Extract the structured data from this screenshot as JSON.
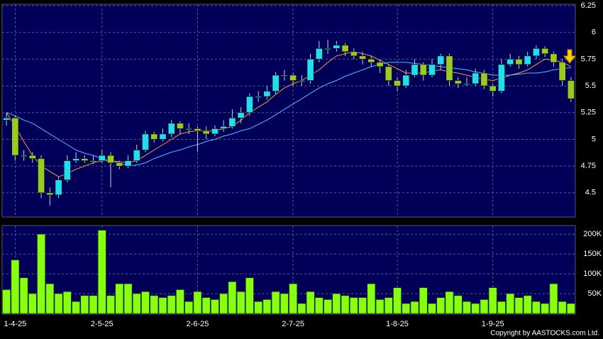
{
  "chart_data": {
    "type": "candlestick",
    "categories": [
      null,
      "1-4-25",
      null,
      null,
      null,
      null,
      null,
      null,
      null,
      null,
      null,
      "2-5-25",
      null,
      null,
      null,
      null,
      null,
      null,
      null,
      null,
      null,
      null,
      "2-6-25",
      null,
      null,
      null,
      null,
      null,
      null,
      null,
      null,
      null,
      null,
      "2-7-25",
      null,
      null,
      null,
      null,
      null,
      null,
      null,
      null,
      null,
      null,
      null,
      "1-8-25",
      null,
      null,
      null,
      null,
      null,
      null,
      null,
      null,
      null,
      null,
      "1-9-25",
      null,
      null,
      null,
      null,
      null,
      null,
      null,
      null,
      null
    ],
    "open": [
      5.18,
      5.2,
      4.85,
      4.85,
      4.82,
      4.5,
      4.48,
      4.62,
      4.8,
      4.82,
      4.8,
      4.8,
      4.85,
      4.78,
      4.75,
      4.8,
      4.9,
      5.05,
      5.0,
      5.05,
      5.15,
      5.1,
      5.1,
      5.08,
      5.05,
      5.1,
      5.12,
      5.2,
      5.25,
      5.4,
      5.4,
      5.45,
      5.6,
      5.6,
      5.55,
      5.55,
      5.75,
      5.85,
      5.85,
      5.88,
      5.82,
      5.78,
      5.75,
      5.72,
      5.68,
      5.55,
      5.5,
      5.6,
      5.7,
      5.6,
      5.7,
      5.78,
      5.55,
      5.52,
      5.52,
      5.62,
      5.5,
      5.45,
      5.7,
      5.75,
      5.7,
      5.78,
      5.85,
      5.8,
      5.72,
      5.55
    ],
    "high": [
      5.25,
      5.22,
      4.9,
      4.88,
      4.85,
      4.55,
      4.65,
      4.85,
      4.88,
      4.85,
      4.85,
      4.9,
      4.88,
      4.8,
      4.85,
      4.95,
      5.08,
      5.07,
      5.1,
      5.18,
      5.17,
      5.15,
      5.12,
      5.12,
      5.13,
      5.18,
      5.28,
      5.3,
      5.43,
      5.45,
      5.5,
      5.63,
      5.65,
      5.62,
      5.6,
      5.8,
      5.92,
      5.93,
      5.92,
      5.9,
      5.85,
      5.82,
      5.78,
      5.75,
      5.7,
      5.58,
      5.65,
      5.75,
      5.72,
      5.75,
      5.8,
      5.8,
      5.58,
      5.58,
      5.66,
      5.65,
      5.52,
      5.75,
      5.8,
      5.78,
      5.82,
      5.88,
      5.87,
      5.82,
      5.75,
      5.58
    ],
    "low": [
      5.13,
      4.8,
      4.8,
      4.78,
      4.45,
      4.38,
      4.45,
      4.6,
      4.78,
      4.78,
      4.77,
      4.78,
      4.55,
      4.72,
      4.73,
      4.78,
      4.88,
      4.97,
      4.98,
      5.02,
      5.05,
      5.05,
      4.88,
      5.0,
      5.03,
      5.07,
      5.1,
      5.15,
      5.22,
      5.35,
      5.37,
      5.42,
      5.55,
      5.5,
      5.5,
      5.52,
      5.72,
      5.8,
      5.82,
      5.78,
      5.75,
      5.7,
      5.68,
      5.62,
      5.5,
      5.45,
      5.48,
      5.58,
      5.55,
      5.58,
      5.65,
      5.5,
      5.48,
      5.5,
      5.5,
      5.47,
      5.4,
      5.43,
      5.68,
      5.66,
      5.68,
      5.75,
      5.77,
      5.68,
      5.5,
      5.35
    ],
    "close": [
      5.2,
      4.85,
      4.85,
      4.82,
      4.5,
      4.48,
      4.62,
      4.8,
      4.82,
      4.8,
      4.8,
      4.85,
      4.78,
      4.75,
      4.8,
      4.9,
      5.05,
      5.0,
      5.05,
      5.15,
      5.1,
      5.1,
      5.08,
      5.05,
      5.1,
      5.12,
      5.2,
      5.25,
      5.4,
      5.4,
      5.45,
      5.6,
      5.6,
      5.55,
      5.55,
      5.75,
      5.85,
      5.85,
      5.88,
      5.82,
      5.78,
      5.75,
      5.72,
      5.68,
      5.55,
      5.5,
      5.6,
      5.7,
      5.6,
      5.7,
      5.78,
      5.55,
      5.52,
      5.52,
      5.62,
      5.5,
      5.45,
      5.7,
      5.75,
      5.7,
      5.78,
      5.85,
      5.8,
      5.72,
      5.55,
      5.38
    ],
    "up_color": "#22ddee",
    "down_color": "#99cc22",
    "series": [
      {
        "color": "#ff9933",
        "values": [
          5.25,
          5.12,
          4.98,
          4.85,
          4.75,
          4.7,
          4.65,
          4.68,
          4.72,
          4.75,
          4.78,
          4.8,
          4.8,
          4.79,
          4.78,
          4.8,
          4.85,
          4.9,
          4.95,
          5.0,
          5.05,
          5.07,
          5.08,
          5.08,
          5.08,
          5.1,
          5.12,
          5.18,
          5.25,
          5.3,
          5.35,
          5.42,
          5.48,
          5.52,
          5.55,
          5.6,
          5.65,
          5.72,
          5.78,
          5.8,
          5.82,
          5.8,
          5.78,
          5.74,
          5.7,
          5.66,
          5.62,
          5.62,
          5.62,
          5.64,
          5.65,
          5.63,
          5.62,
          5.6,
          5.58,
          5.56,
          5.55,
          5.57,
          5.6,
          5.62,
          5.65,
          5.7,
          5.75,
          5.74,
          5.72,
          5.68
        ]
      },
      {
        "color": "#55bbff",
        "values": [
          5.25,
          5.22,
          5.18,
          5.15,
          5.1,
          5.05,
          5.0,
          4.95,
          4.9,
          4.87,
          4.85,
          4.82,
          4.8,
          4.78,
          4.75,
          4.76,
          4.78,
          4.82,
          4.85,
          4.88,
          4.9,
          4.93,
          4.95,
          4.98,
          5.0,
          5.03,
          5.05,
          5.08,
          5.1,
          5.14,
          5.18,
          5.23,
          5.28,
          5.33,
          5.38,
          5.43,
          5.48,
          5.52,
          5.55,
          5.59,
          5.62,
          5.65,
          5.68,
          5.7,
          5.72,
          5.72,
          5.72,
          5.71,
          5.7,
          5.69,
          5.68,
          5.67,
          5.66,
          5.65,
          5.63,
          5.62,
          5.6,
          5.6,
          5.6,
          5.61,
          5.62,
          5.62,
          5.63,
          5.65,
          5.66,
          5.67
        ]
      }
    ],
    "ylim": [
      4.28,
      6.25
    ],
    "yticks": [
      4.5,
      4.75,
      5,
      5.25,
      5.5,
      5.75,
      6,
      6.25
    ],
    "grid": true,
    "volume": {
      "color": "#88ff11",
      "values": [
        60000,
        135000,
        90000,
        50000,
        200000,
        75000,
        50000,
        55000,
        30000,
        45000,
        45000,
        210000,
        45000,
        75000,
        75000,
        50000,
        55000,
        45000,
        40000,
        45000,
        60000,
        30000,
        55000,
        40000,
        35000,
        50000,
        80000,
        55000,
        90000,
        30000,
        35000,
        55000,
        50000,
        75000,
        25000,
        55000,
        40000,
        35000,
        50000,
        45000,
        40000,
        40000,
        75000,
        35000,
        40000,
        65000,
        25000,
        30000,
        65000,
        25000,
        40000,
        55000,
        45000,
        30000,
        25000,
        35000,
        65000,
        30000,
        50000,
        40000,
        45000,
        30000,
        25000,
        75000,
        30000,
        25000
      ],
      "ylim": [
        0,
        222000
      ],
      "yticks": [
        {
          "value": 50000,
          "label": "50K"
        },
        {
          "value": 100000,
          "label": "100K"
        },
        {
          "value": 150000,
          "label": "150K"
        },
        {
          "value": 200000,
          "label": "200K"
        }
      ]
    },
    "credit": "Copyright by AASTOCKS.com Ltd."
  }
}
